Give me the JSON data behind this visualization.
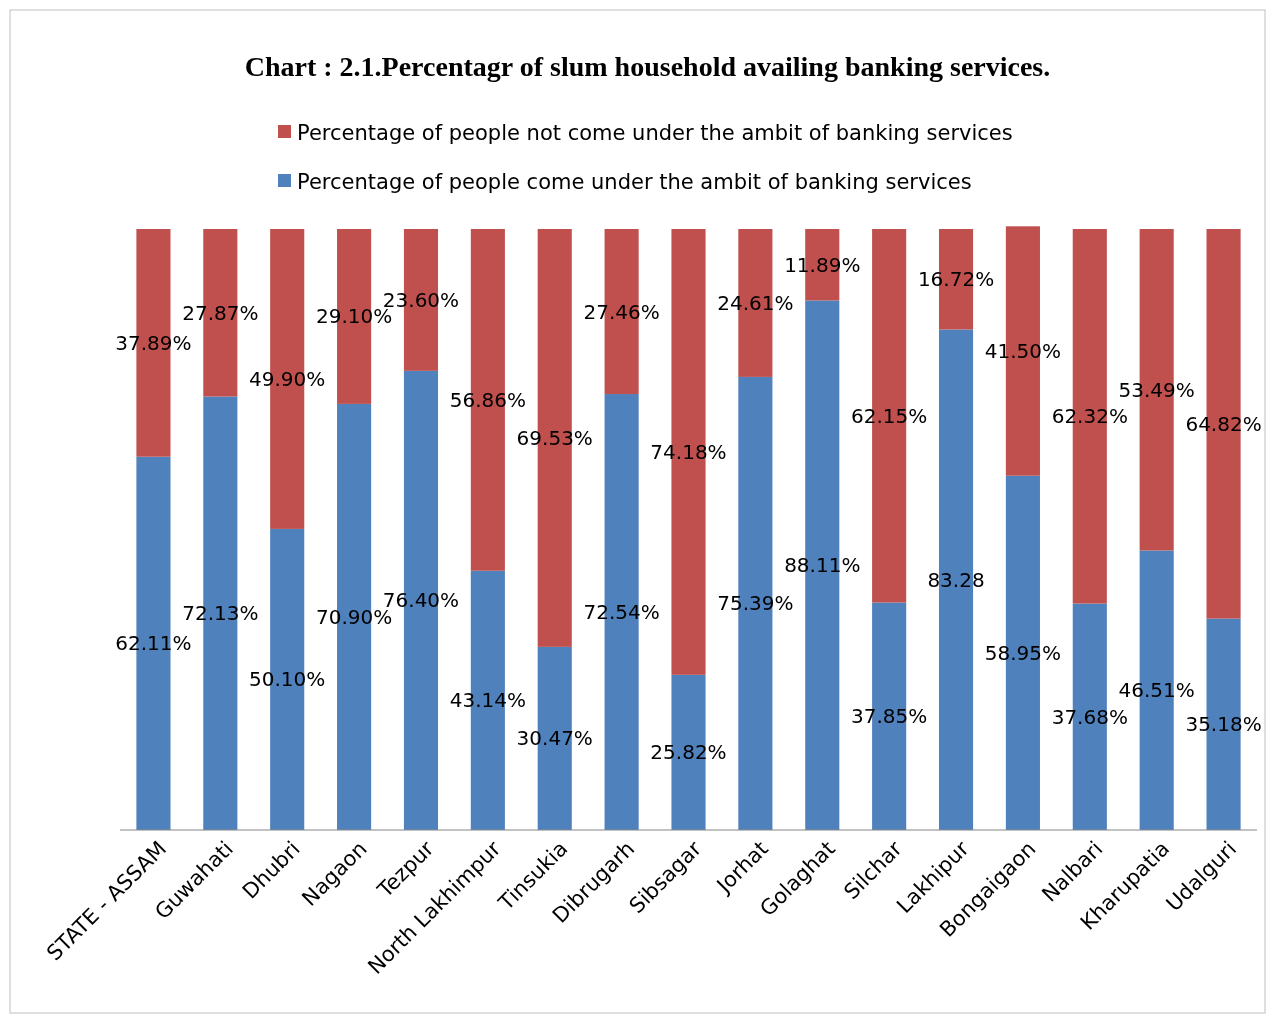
{
  "chart_data": {
    "type": "bar",
    "title": "Chart : 2.1.Percentagr of slum household availing banking services.",
    "stacked": true,
    "legend": "top",
    "tick_labels": "x",
    "ylim": [
      0,
      101
    ],
    "categories": [
      "STATE - ASSAM",
      "Guwahati",
      "Dhubri",
      "Nagaon",
      "Tezpur",
      "North Lakhimpur",
      "Tinsukia",
      "Dibrugarh",
      "Sibsagar",
      "Jorhat",
      "Golaghat",
      "Silchar",
      "Lakhipur",
      "Bongaigaon",
      "Nalbari",
      "Kharupatia",
      "Udalguri"
    ],
    "series": [
      {
        "name": "Percentage of people come under the ambit of banking services",
        "color": "#4f81bd",
        "values": [
          62.11,
          72.13,
          50.1,
          70.9,
          76.4,
          43.14,
          30.47,
          72.54,
          25.82,
          75.39,
          88.11,
          37.85,
          83.28,
          58.95,
          37.68,
          46.51,
          35.18
        ],
        "value_labels": [
          "62.11%",
          "72.13%",
          "50.10%",
          "70.90%",
          "76.40%",
          "43.14%",
          "30.47%",
          "72.54%",
          "25.82%",
          "75.39%",
          "88.11%",
          "37.85%",
          "83.28",
          "58.95%",
          "37.68%",
          "46.51%",
          "35.18%"
        ]
      },
      {
        "name": "Percentage of people not come under the ambit of banking services",
        "color": "#c0504d",
        "values": [
          37.89,
          27.87,
          49.9,
          29.1,
          23.6,
          56.86,
          69.53,
          27.46,
          74.18,
          24.61,
          11.89,
          62.15,
          16.72,
          41.5,
          62.32,
          53.49,
          64.82
        ],
        "value_labels": [
          "37.89%",
          "27.87%",
          "49.90%",
          "29.10%",
          "23.60%",
          "56.86%",
          "69.53%",
          "27.46%",
          "74.18%",
          "24.61%",
          "11.89%",
          "62.15%",
          "16.72%",
          "41.50%",
          "62.32%",
          "53.49%",
          "64.82%"
        ]
      }
    ]
  }
}
